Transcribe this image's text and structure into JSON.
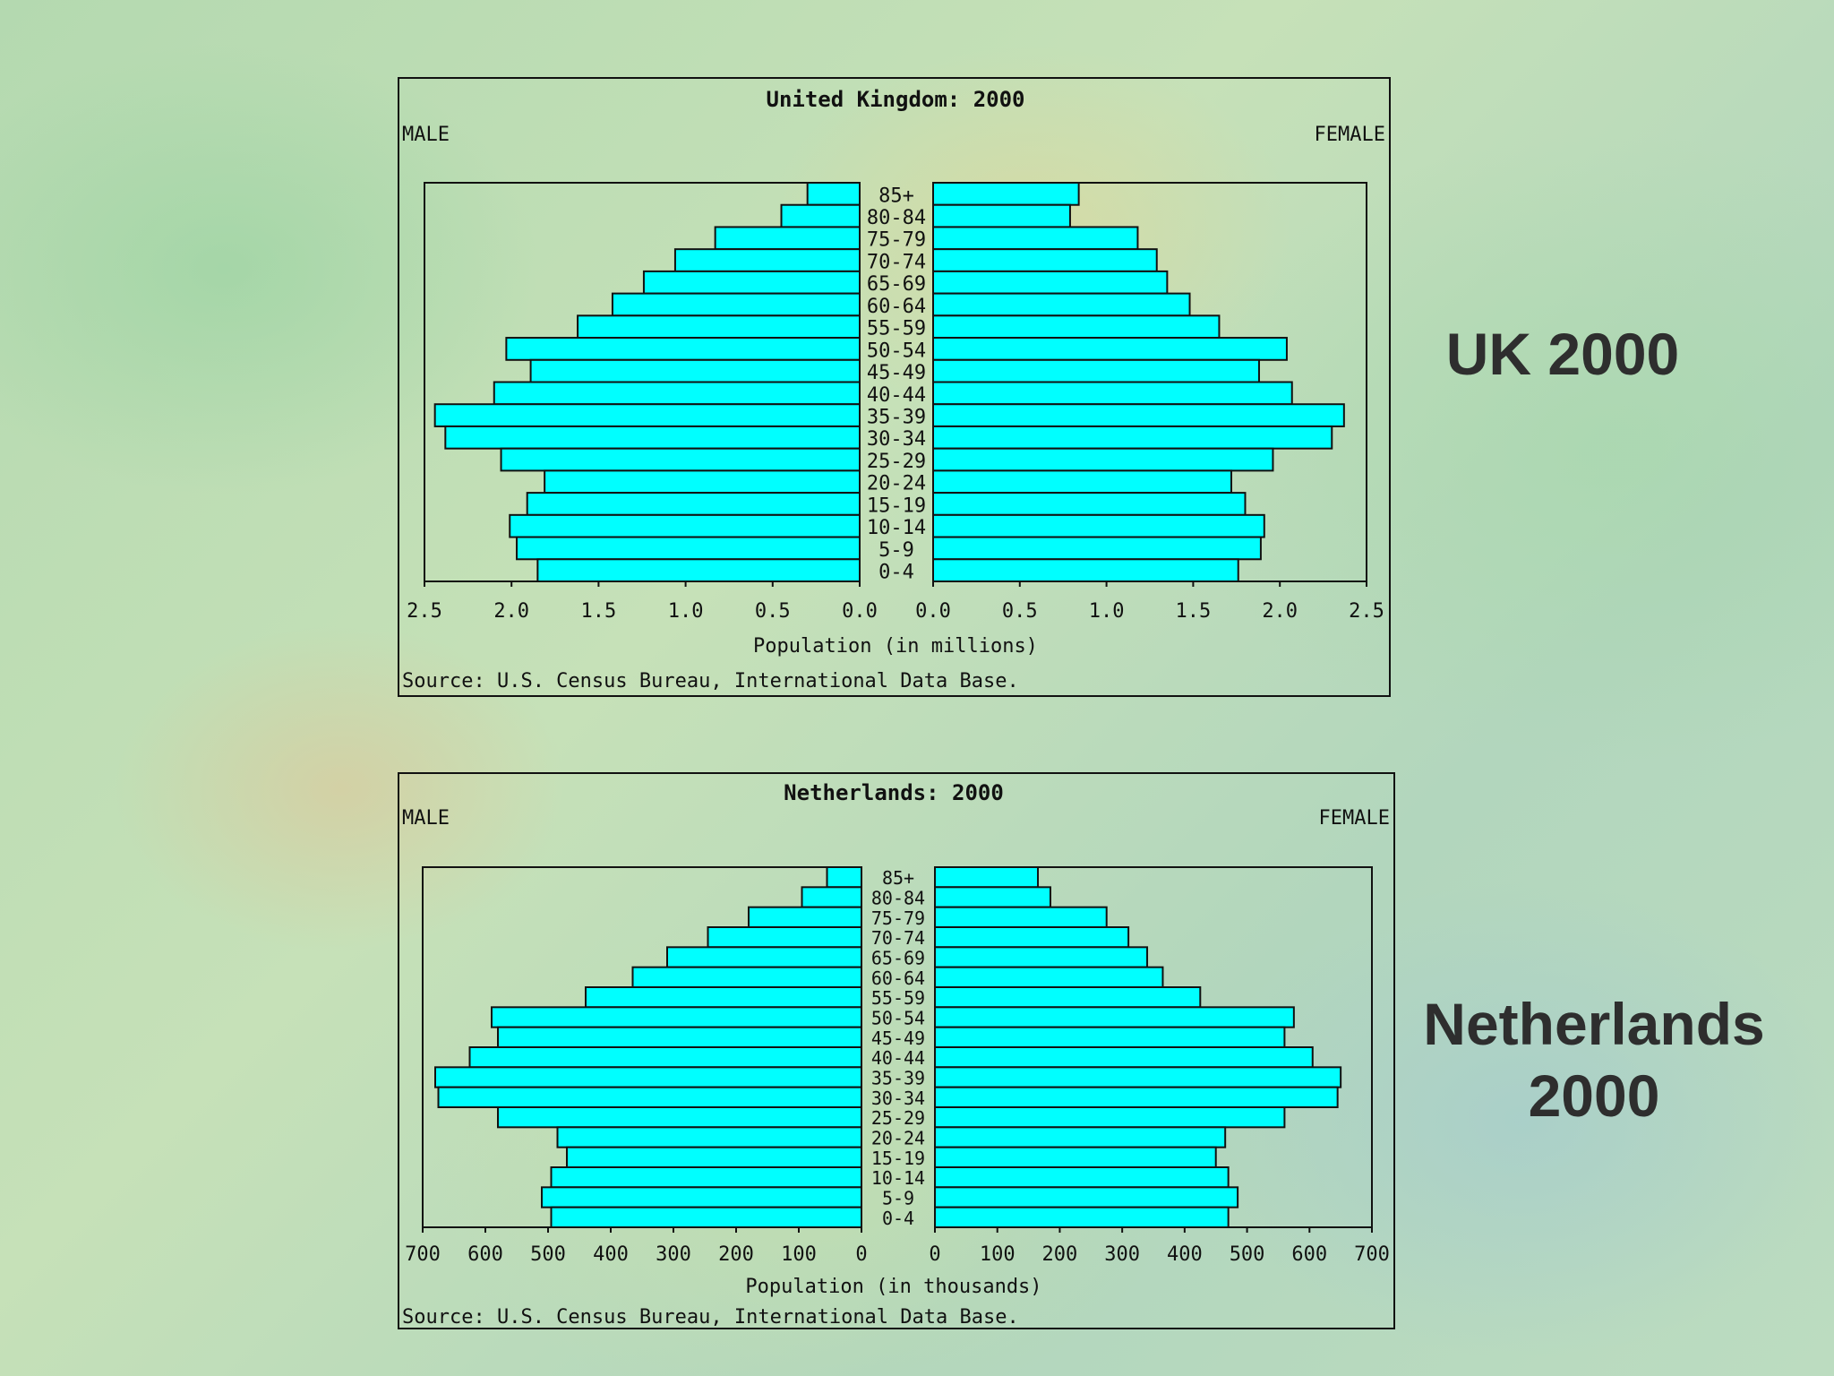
{
  "slide_labels": {
    "uk": "UK 2000",
    "netherlands_line1": "Netherlands",
    "netherlands_line2": "2000"
  },
  "colors": {
    "bar": "#00ffff",
    "outline": "#111111"
  },
  "chart_data": [
    {
      "type": "bar",
      "id": "uk",
      "title": "United Kingdom: 2000",
      "left_label": "MALE",
      "right_label": "FEMALE",
      "xlabel": "Population (in millions)",
      "source": "Source: U.S. Census Bureau, International Data Base.",
      "xlim": [
        0,
        2.5
      ],
      "ticks": [
        "2.5",
        "2.0",
        "1.5",
        "1.0",
        "0.5",
        "0.0"
      ],
      "tick_values": [
        2.5,
        2.0,
        1.5,
        1.0,
        0.5,
        0.0
      ],
      "categories": [
        "85+",
        "80-84",
        "75-79",
        "70-74",
        "65-69",
        "60-64",
        "55-59",
        "50-54",
        "45-49",
        "40-44",
        "35-39",
        "30-34",
        "25-29",
        "20-24",
        "15-19",
        "10-14",
        "5-9",
        "0-4"
      ],
      "series": [
        {
          "name": "MALE",
          "values": [
            0.3,
            0.45,
            0.83,
            1.06,
            1.24,
            1.42,
            1.62,
            2.03,
            1.89,
            2.1,
            2.44,
            2.38,
            2.06,
            1.81,
            1.91,
            2.01,
            1.97,
            1.85
          ]
        },
        {
          "name": "FEMALE",
          "values": [
            0.84,
            0.79,
            1.18,
            1.29,
            1.35,
            1.48,
            1.65,
            2.04,
            1.88,
            2.07,
            2.37,
            2.3,
            1.96,
            1.72,
            1.8,
            1.91,
            1.89,
            1.76
          ]
        }
      ]
    },
    {
      "type": "bar",
      "id": "netherlands",
      "title": "Netherlands: 2000",
      "left_label": "MALE",
      "right_label": "FEMALE",
      "xlabel": "Population (in thousands)",
      "source": "Source: U.S. Census Bureau, International Data Base.",
      "xlim": [
        0,
        700
      ],
      "ticks": [
        "700",
        "600",
        "500",
        "400",
        "300",
        "200",
        "100",
        "0"
      ],
      "tick_values": [
        700,
        600,
        500,
        400,
        300,
        200,
        100,
        0
      ],
      "categories": [
        "85+",
        "80-84",
        "75-79",
        "70-74",
        "65-69",
        "60-64",
        "55-59",
        "50-54",
        "45-49",
        "40-44",
        "35-39",
        "30-34",
        "25-29",
        "20-24",
        "15-19",
        "10-14",
        "5-9",
        "0-4"
      ],
      "series": [
        {
          "name": "MALE",
          "values": [
            55,
            95,
            180,
            245,
            310,
            365,
            440,
            590,
            580,
            625,
            680,
            675,
            580,
            485,
            470,
            495,
            510,
            495
          ]
        },
        {
          "name": "FEMALE",
          "values": [
            165,
            185,
            275,
            310,
            340,
            365,
            425,
            575,
            560,
            605,
            650,
            645,
            560,
            465,
            450,
            470,
            485,
            470
          ]
        }
      ]
    }
  ]
}
